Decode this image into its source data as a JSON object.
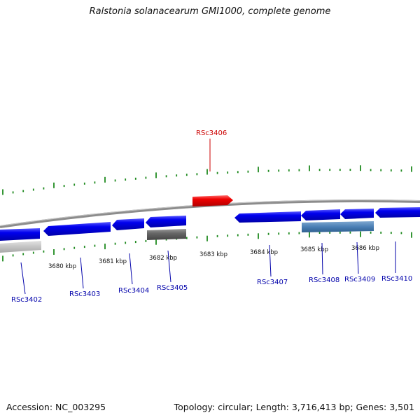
{
  "title": "Ralstonia solanacearum GMI1000, complete genome",
  "footer": {
    "accession": "Accession: NC_003295",
    "summary": "Topology: circular; Length: 3,716,413 bp; Genes: 3,501"
  },
  "colors": {
    "backbone": "#8c8c8c",
    "tick": "#1f8a1f",
    "forward_gene": "#0000ee",
    "reverse_gene": "#0000ee",
    "selected_gene": "#ee0000",
    "rna_feature": "#4a7fb5",
    "pseudo_feature": "#666666",
    "other_feature": "#c4c4c4",
    "gene_label": "#0000aa",
    "selected_label": "#cc0000"
  },
  "coordinate_labels": [
    "3680 kbp",
    "3681 kbp",
    "3682 kbp",
    "3683 kbp",
    "3684 kbp",
    "3685 kbp",
    "3686 kbp"
  ],
  "genes": [
    {
      "id": "RSc3402",
      "strand": "reverse",
      "color": "#c4c4c4"
    },
    {
      "id": "RSc3403",
      "strand": "reverse",
      "color": "#0000ee"
    },
    {
      "id": "RSc3404",
      "strand": "reverse",
      "color": "#0000ee"
    },
    {
      "id": "RSc3405",
      "strand": "reverse",
      "color": "#0000ee"
    },
    {
      "id": "RSc3406",
      "strand": "forward",
      "color": "#ee0000",
      "selected": true
    },
    {
      "id": "RSc3407",
      "strand": "reverse",
      "color": "#0000ee"
    },
    {
      "id": "RSc3408",
      "strand": "reverse",
      "color": "#0000ee"
    },
    {
      "id": "RSc3409",
      "strand": "reverse",
      "color": "#0000ee"
    },
    {
      "id": "RSc3410",
      "strand": "reverse",
      "color": "#0000ee"
    }
  ]
}
